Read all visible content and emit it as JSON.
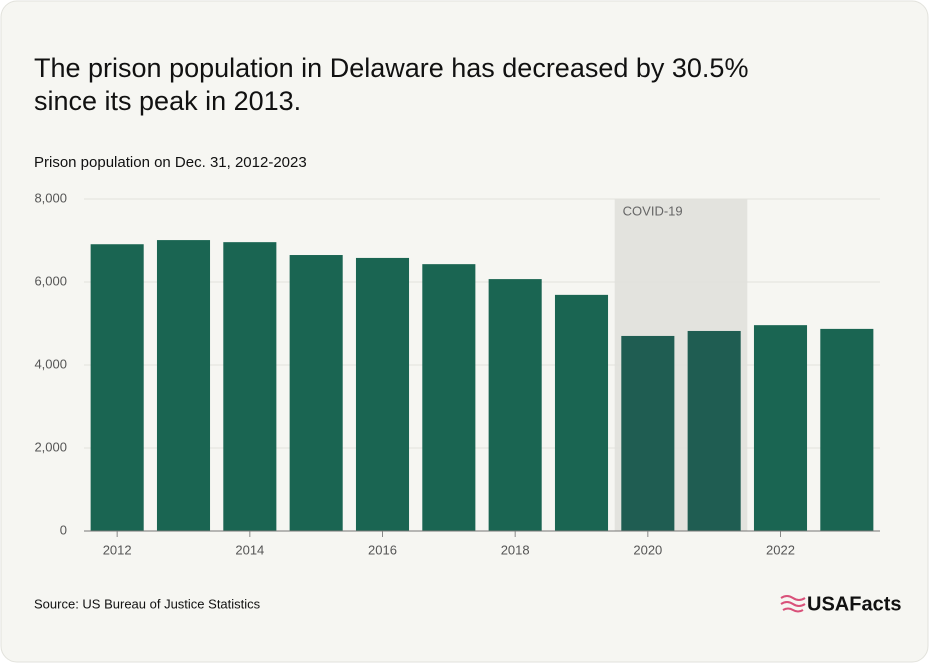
{
  "chart_data": {
    "type": "bar",
    "title": [
      "The prison population in Delaware has decreased by 30.5%",
      "since its peak in 2013."
    ],
    "subtitle": "Prison population on Dec. 31, 2012-2023",
    "source": "Source: US Bureau of Justice Statistics",
    "brand": "USAFacts",
    "annotation": "COVID-19",
    "categories": [
      "2012",
      null,
      "2014",
      null,
      "2016",
      null,
      "2018",
      null,
      "2020",
      null,
      "2022",
      null
    ],
    "values": [
      6910,
      7010,
      6960,
      6650,
      6580,
      6430,
      6070,
      5690,
      4700,
      4820,
      4960,
      4870
    ],
    "color": "#1a6552",
    "highlight_color": "#1f5d52",
    "ylim": [
      0,
      8000
    ],
    "yticks": [
      0,
      {
        "value": 2000,
        "label": "2,000"
      },
      {
        "value": 4000,
        "label": "4,000"
      },
      {
        "value": 6000,
        "label": "6,000"
      },
      {
        "value": 8000,
        "label": "8,000"
      }
    ],
    "grid": true
  }
}
